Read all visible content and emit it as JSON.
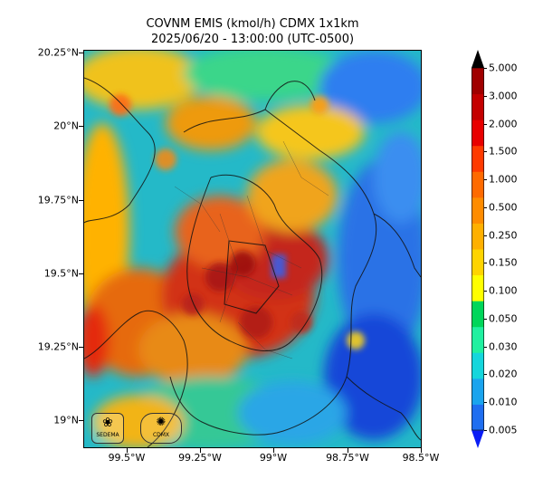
{
  "title": {
    "line1": "COVNM EMIS (kmol/h) CDMX 1x1km",
    "line2": "2025/06/20 - 13:00:00 (UTC-0500)"
  },
  "axes": {
    "lat_ticks": [
      "20.25°N",
      "20°N",
      "19.75°N",
      "19.5°N",
      "19.25°N",
      "19°N"
    ],
    "lon_ticks": [
      "99.5°W",
      "99.25°W",
      "99°W",
      "98.75°W",
      "98.5°W"
    ]
  },
  "colorbar": {
    "labels": [
      "5.000",
      "3.000",
      "2.000",
      "1.500",
      "1.000",
      "0.500",
      "0.250",
      "0.150",
      "0.100",
      "0.050",
      "0.030",
      "0.020",
      "0.010",
      "0.005"
    ],
    "colors": [
      "#0a1df5",
      "#1f6ef0",
      "#1aa4ee",
      "#14d6dc",
      "#20f0a0",
      "#00d65a",
      "#ffff00",
      "#ffd400",
      "#ffb000",
      "#ff8c00",
      "#ff6a00",
      "#ff3a00",
      "#e80000",
      "#c40000",
      "#a00000",
      "#7a0000"
    ]
  },
  "logos": {
    "sedema": "SEDEMA",
    "second": "CDMX"
  }
}
